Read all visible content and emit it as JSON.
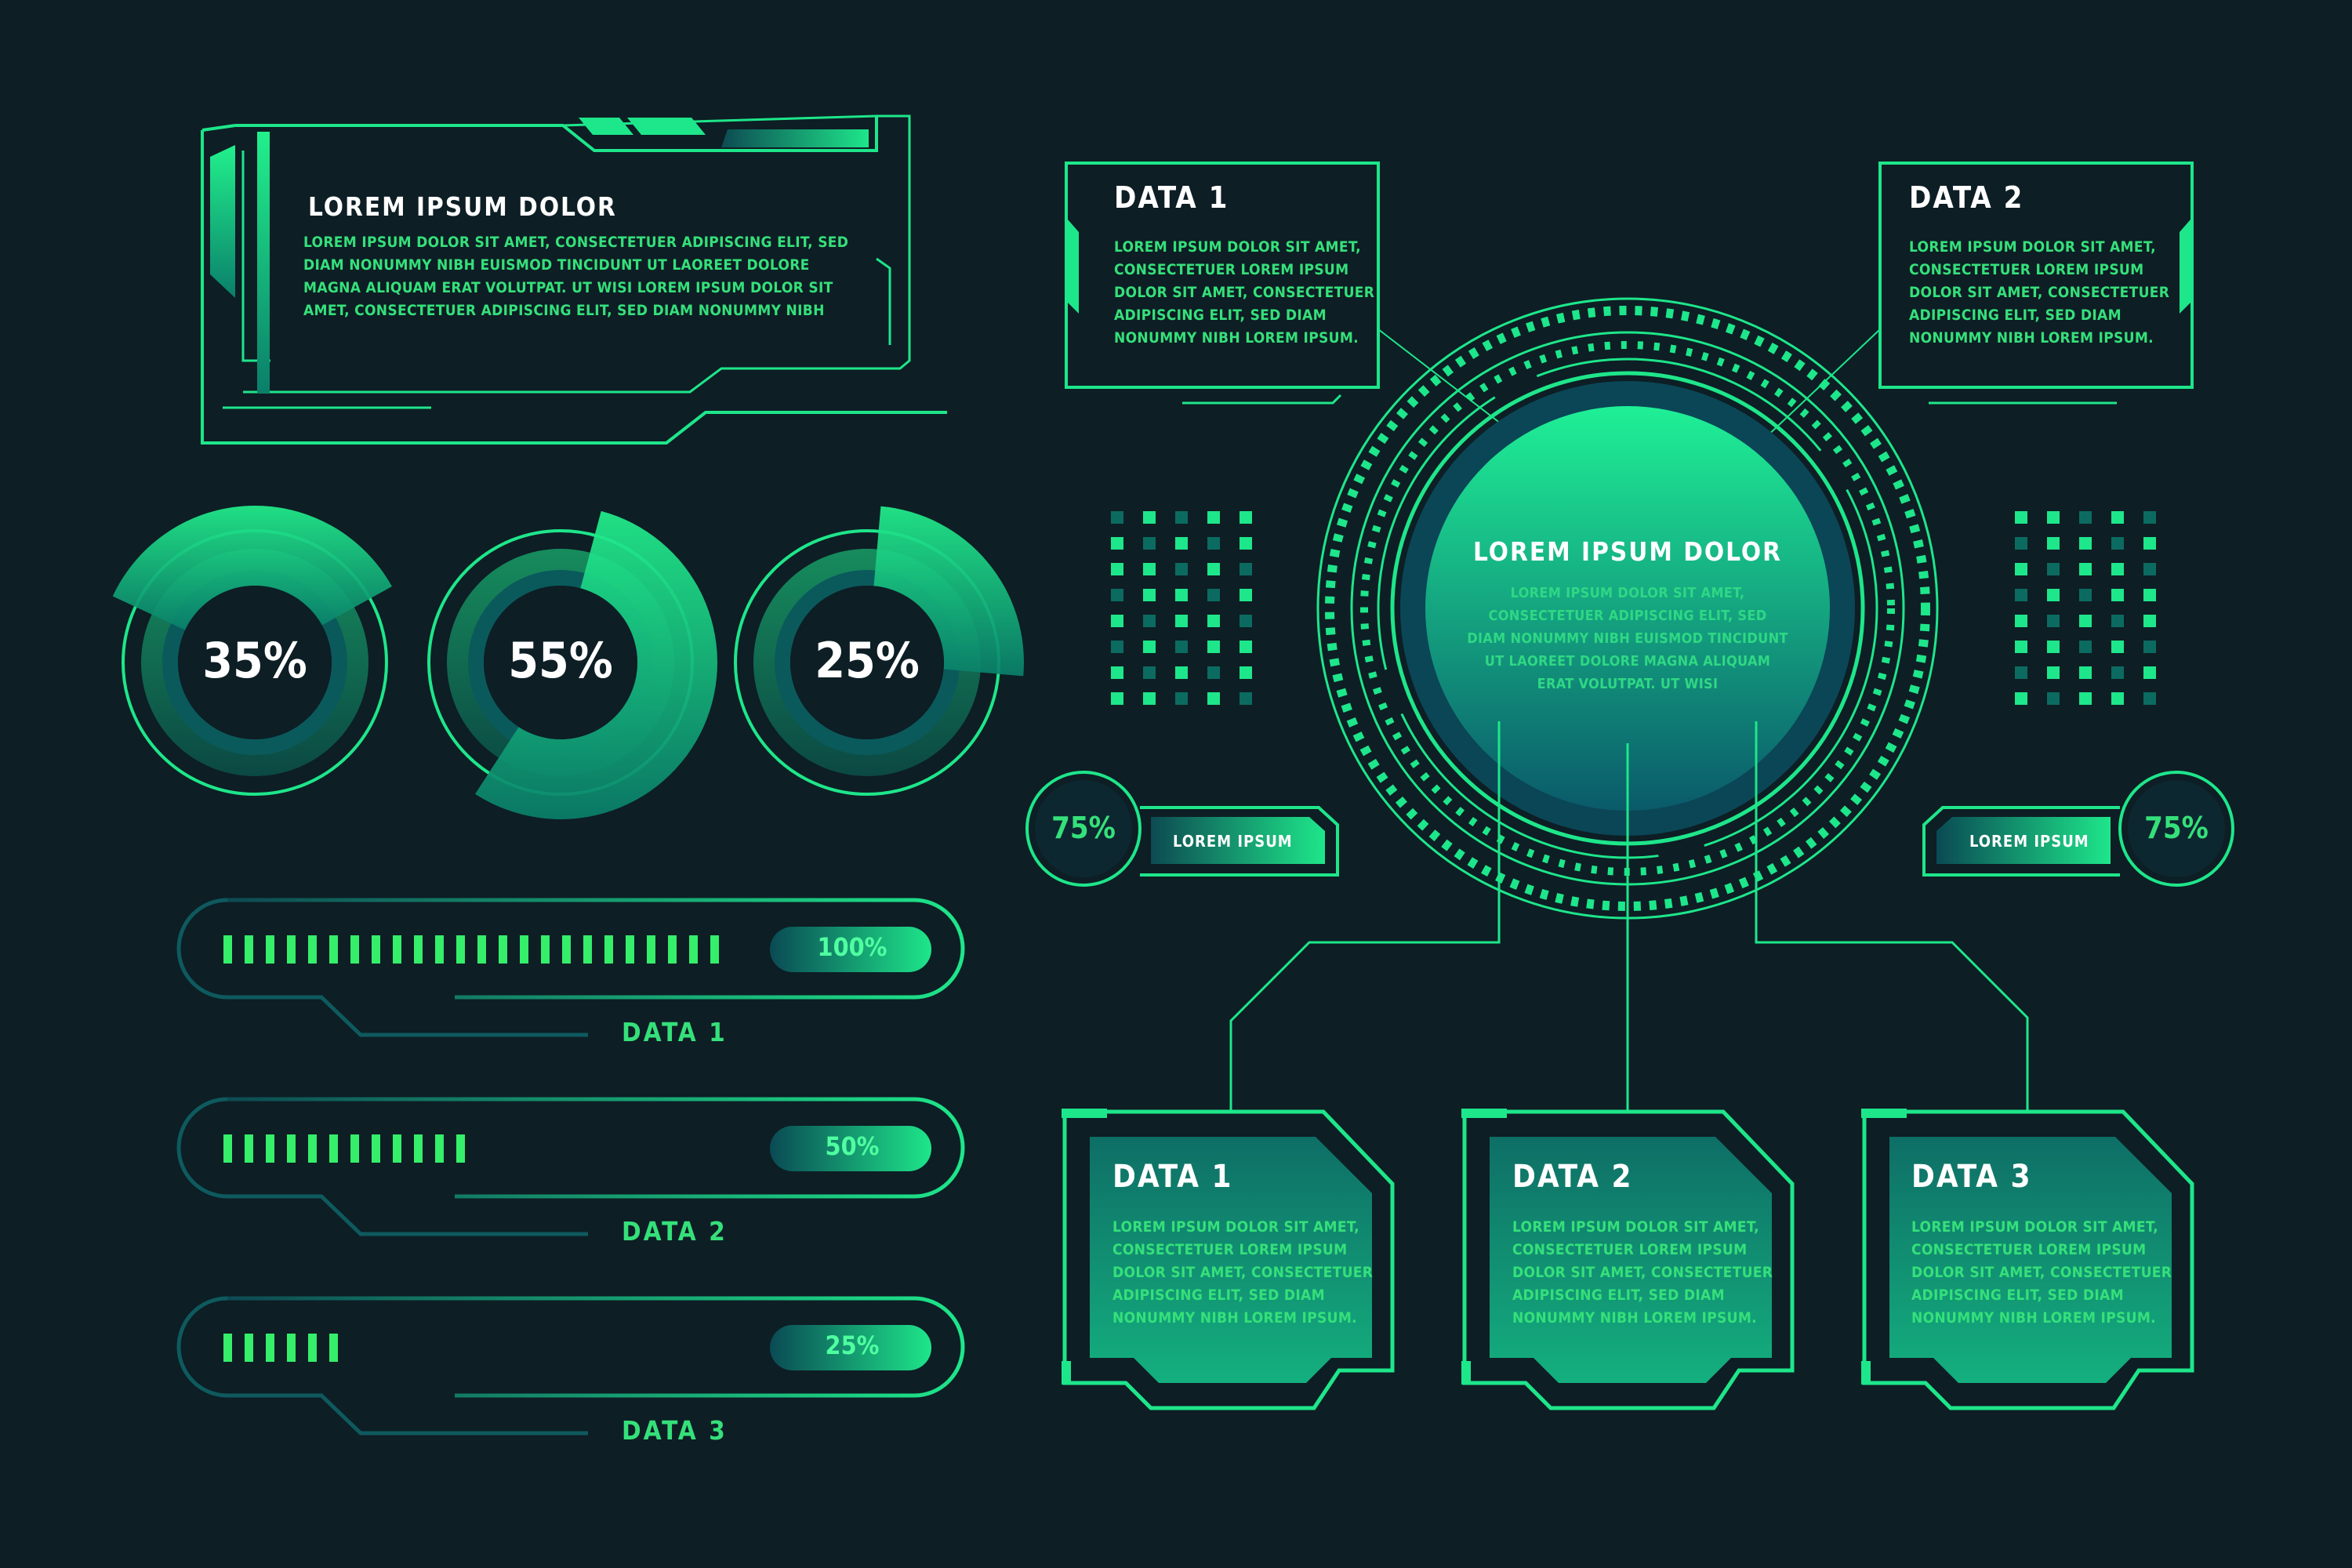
{
  "colors": {
    "background": "#0d1e25",
    "accent": "#1ee68a",
    "accent_dark": "#0a6b5c",
    "text": "#ffffff",
    "body_text": "#35e07a"
  },
  "top_panel": {
    "title": "LOREM IPSUM DOLOR",
    "body": "LOREM IPSUM DOLOR SIT AMET, CONSECTETUER ADIPISCING ELIT, SED\nDIAM NONUMMY NIBH EUISMOD TINCIDUNT UT LAOREET DOLORE\nMAGNA ALIQUAM ERAT VOLUTPAT. UT WISI LOREM IPSUM DOLOR SIT\nAMET, CONSECTETUER ADIPISCING ELIT, SED DIAM NONUMMY NIBH"
  },
  "donuts": [
    {
      "label": "35%",
      "value": 35
    },
    {
      "label": "55%",
      "value": 55
    },
    {
      "label": "25%",
      "value": 25
    }
  ],
  "bars": [
    {
      "label": "DATA 1",
      "percent_label": "100%",
      "value": 100
    },
    {
      "label": "DATA 2",
      "percent_label": "50%",
      "value": 50
    },
    {
      "label": "DATA 3",
      "percent_label": "25%",
      "value": 25
    }
  ],
  "callouts": [
    {
      "title": "DATA 1",
      "body": "LOREM IPSUM DOLOR SIT AMET,\nCONSECTETUER LOREM IPSUM\nDOLOR SIT AMET, CONSECTETUER\nADIPISCING ELIT, SED DIAM\nNONUMMY NIBH LOREM IPSUM."
    },
    {
      "title": "DATA 2",
      "body": "LOREM IPSUM DOLOR SIT AMET,\nCONSECTETUER LOREM IPSUM\nDOLOR SIT AMET, CONSECTETUER\nADIPISCING ELIT, SED DIAM\nNONUMMY NIBH LOREM IPSUM."
    }
  ],
  "hub": {
    "title": "LOREM IPSUM DOLOR",
    "body": "LOREM IPSUM DOLOR SIT AMET,\nCONSECTETUER ADIPISCING ELIT, SED\nDIAM NONUMMY NIBH EUISMOD TINCIDUNT\nUT LAOREET DOLORE MAGNA ALIQUAM\nERAT VOLUTPAT. UT WISI"
  },
  "side_badges": [
    {
      "percent": "75%",
      "label": "LOREM IPSUM",
      "value": 75
    },
    {
      "percent": "75%",
      "label": "LOREM IPSUM",
      "value": 75
    }
  ],
  "cards": [
    {
      "title": "DATA 1",
      "body": "LOREM IPSUM DOLOR SIT AMET,\nCONSECTETUER LOREM IPSUM\nDOLOR SIT AMET, CONSECTETUER\nADIPISCING ELIT, SED DIAM\nNONUMMY NIBH LOREM IPSUM."
    },
    {
      "title": "DATA 2",
      "body": "LOREM IPSUM DOLOR SIT AMET,\nCONSECTETUER LOREM IPSUM\nDOLOR SIT AMET, CONSECTETUER\nADIPISCING ELIT, SED DIAM\nNONUMMY NIBH LOREM IPSUM."
    },
    {
      "title": "DATA 3",
      "body": "LOREM IPSUM DOLOR SIT AMET,\nCONSECTETUER LOREM IPSUM\nDOLOR SIT AMET, CONSECTETUER\nADIPISCING ELIT, SED DIAM\nNONUMMY NIBH LOREM IPSUM."
    }
  ]
}
